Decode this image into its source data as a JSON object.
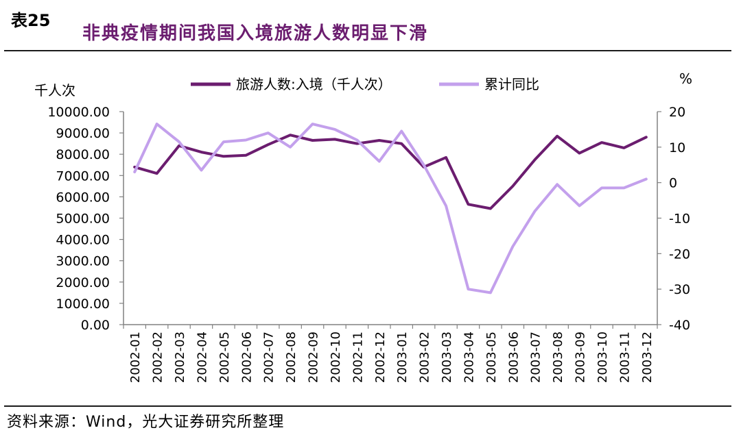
{
  "figure": {
    "table_no": "表25",
    "title": "非典疫情期间我国入境旅游人数明显下滑",
    "source": "资料来源：Wind，光大证券研究所整理"
  },
  "colors": {
    "series1": "#6b1d6f",
    "series2": "#c3a0ec",
    "axis": "#808080",
    "title": "#6b1d6f"
  },
  "chart_data": {
    "type": "line",
    "categories": [
      "2002-01",
      "2002-02",
      "2002-03",
      "2002-04",
      "2002-05",
      "2002-06",
      "2002-07",
      "2002-08",
      "2002-09",
      "2002-10",
      "2002-11",
      "2002-12",
      "2003-01",
      "2003-02",
      "2003-03",
      "2003-04",
      "2003-05",
      "2003-06",
      "2003-07",
      "2003-08",
      "2003-09",
      "2003-10",
      "2003-11",
      "2003-12"
    ],
    "y_left": {
      "label": "千人次",
      "ylim": [
        0,
        10000
      ],
      "ticks": [
        "0.00",
        "1000.00",
        "2000.00",
        "3000.00",
        "4000.00",
        "5000.00",
        "6000.00",
        "7000.00",
        "8000.00",
        "9000.00",
        "10000.00"
      ]
    },
    "y_right": {
      "label": "%",
      "ylim": [
        -40,
        20
      ],
      "ticks": [
        "-40",
        "-30",
        "-20",
        "-10",
        "0",
        "10",
        "20"
      ]
    },
    "legend_position": "top",
    "grid": false,
    "series": [
      {
        "name": "旅游人数:入境（千人次）",
        "axis": "left",
        "values": [
          7400,
          7100,
          8400,
          8100,
          7900,
          7950,
          8450,
          8900,
          8650,
          8700,
          8500,
          8650,
          8500,
          7400,
          7850,
          5650,
          5450,
          6500,
          7750,
          8850,
          8050,
          8550,
          8300,
          8800
        ]
      },
      {
        "name": "累计同比",
        "axis": "right",
        "values": [
          3,
          16.5,
          11.5,
          3.5,
          11.5,
          12,
          14,
          10,
          16.5,
          15,
          12,
          6,
          14.5,
          5,
          -6.5,
          -30,
          -31,
          -18,
          -8,
          -0.5,
          -6.5,
          -1.5,
          -1.5,
          1
        ]
      }
    ]
  }
}
